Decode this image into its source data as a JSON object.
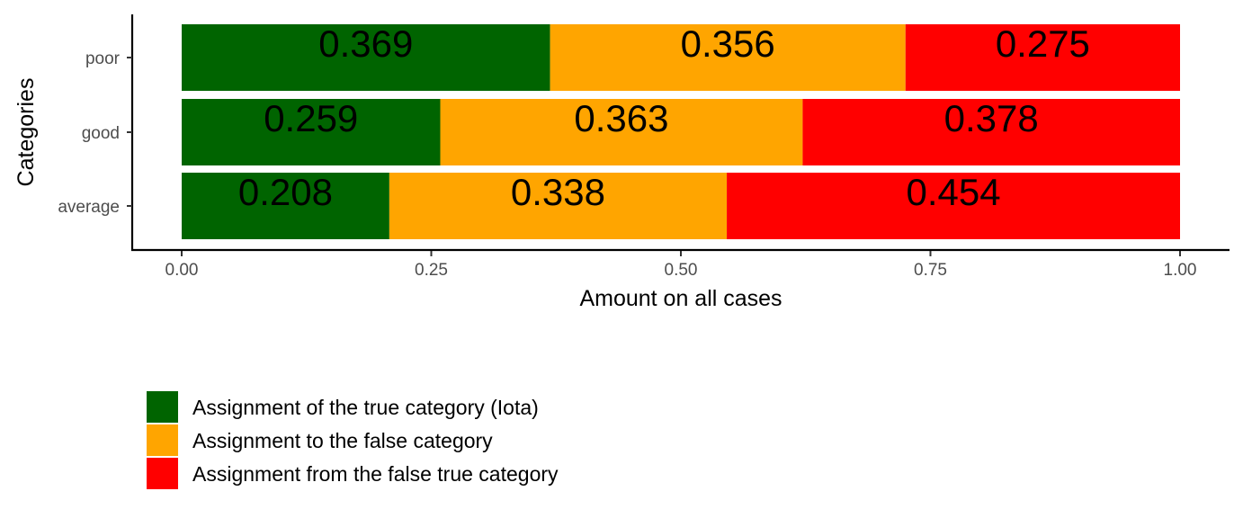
{
  "chart_data": {
    "type": "bar",
    "orientation": "horizontal",
    "stacked": true,
    "categories": [
      "average",
      "good",
      "poor"
    ],
    "series": [
      {
        "name": "Assignment of the true category (Iota)",
        "color": "#006400",
        "values": [
          0.208,
          0.259,
          0.369
        ],
        "labels": [
          "0.208",
          "0.259",
          "0.369"
        ]
      },
      {
        "name": "Assignment to the false category",
        "color": "#FFA500",
        "values": [
          0.338,
          0.363,
          0.356
        ],
        "labels": [
          "0.338",
          "0.363",
          "0.356"
        ]
      },
      {
        "name": "Assignment from the false true category",
        "color": "#FF0000",
        "values": [
          0.454,
          0.378,
          0.275
        ],
        "labels": [
          "0.454",
          "0.378",
          "0.275"
        ]
      }
    ],
    "xlabel": "Amount on all cases",
    "ylabel": "Categories",
    "xlim": [
      0,
      1
    ],
    "xticks": [
      0,
      0.25,
      0.5,
      0.75,
      1
    ],
    "xtick_labels": [
      "0.00",
      "0.25",
      "0.50",
      "0.75",
      "1.00"
    ],
    "grid": false,
    "legend_position": "bottom-left"
  }
}
